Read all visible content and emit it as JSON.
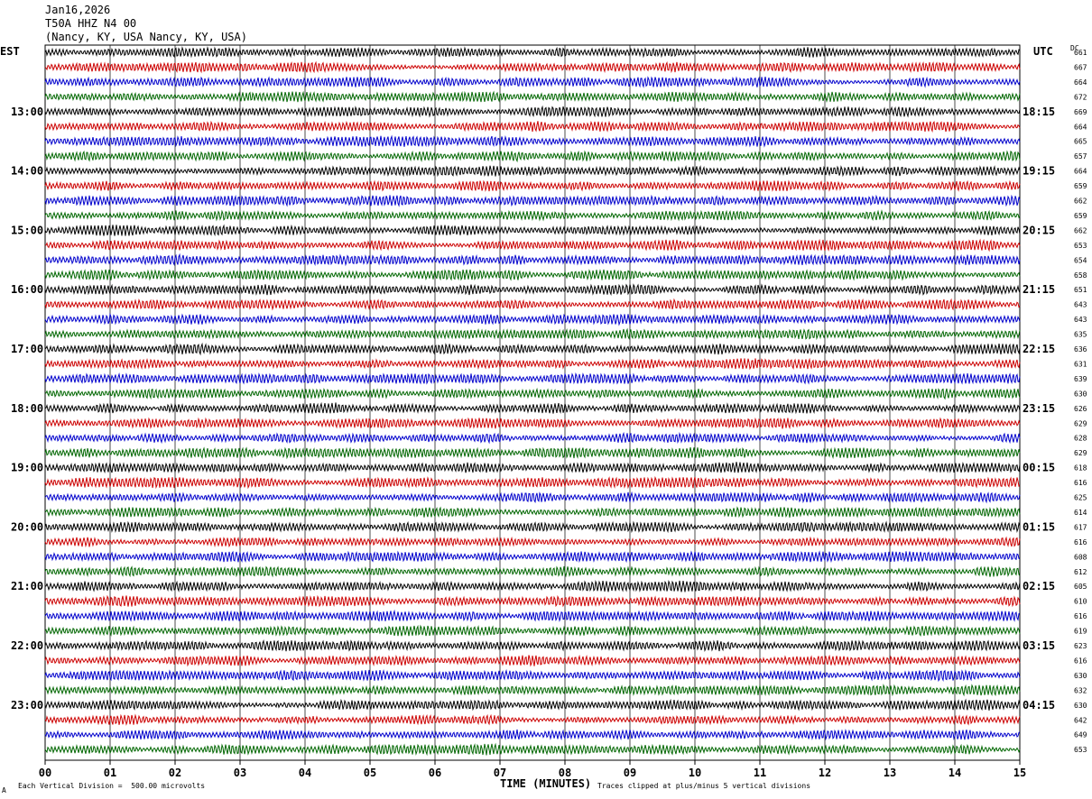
{
  "header": {
    "date": "Jan16,2026",
    "station": "T50A HHZ N4 00",
    "location": "(Nancy, KY, USA Nancy, KY, USA)"
  },
  "left_tz": "EST",
  "right_tz": "UTC",
  "dc_header": "DC",
  "footer": {
    "scale_note": "Each Vertical Division =  500.00 microvolts",
    "clip_note": "Traces clipped at plus/minus 5 vertical divisions",
    "corner_mark": "A"
  },
  "colors": {
    "row0": "#000000",
    "row1": "#cc0000",
    "row2": "#0000cc",
    "row3": "#006600",
    "grid": "#000000"
  },
  "chart_data": {
    "type": "line",
    "title": "T50A HHZ N4 00",
    "xlabel": "TIME (MINUTES)",
    "x_ticks": [
      "00",
      "01",
      "02",
      "03",
      "04",
      "05",
      "06",
      "07",
      "08",
      "09",
      "10",
      "11",
      "12",
      "13",
      "14",
      "15"
    ],
    "xlim": [
      0,
      15
    ],
    "trace_minutes": 15,
    "trace_count": 48,
    "color_cycle": [
      "black",
      "red",
      "blue",
      "green"
    ],
    "left_hour_labels": [
      "13:00",
      "14:00",
      "15:00",
      "16:00",
      "17:00",
      "18:00",
      "19:00",
      "20:00",
      "21:00",
      "22:00",
      "23:00"
    ],
    "right_hour_labels": [
      "18:15",
      "19:15",
      "20:15",
      "21:15",
      "22:15",
      "23:15",
      "00:15",
      "01:15",
      "02:15",
      "03:15",
      "04:15"
    ],
    "dc_values": [
      "661",
      "667",
      "664",
      "672",
      "669",
      "664",
      "665",
      "657",
      "664",
      "659",
      "662",
      "659",
      "662",
      "653",
      "654",
      "658",
      "651",
      "643",
      "643",
      "635",
      "636",
      "631",
      "639",
      "630",
      "626",
      "629",
      "628",
      "629",
      "618",
      "616",
      "625",
      "614",
      "617",
      "616",
      "608",
      "612",
      "605",
      "610",
      "616",
      "619",
      "623",
      "616",
      "630",
      "632",
      "630",
      "642",
      "649",
      "653"
    ]
  }
}
